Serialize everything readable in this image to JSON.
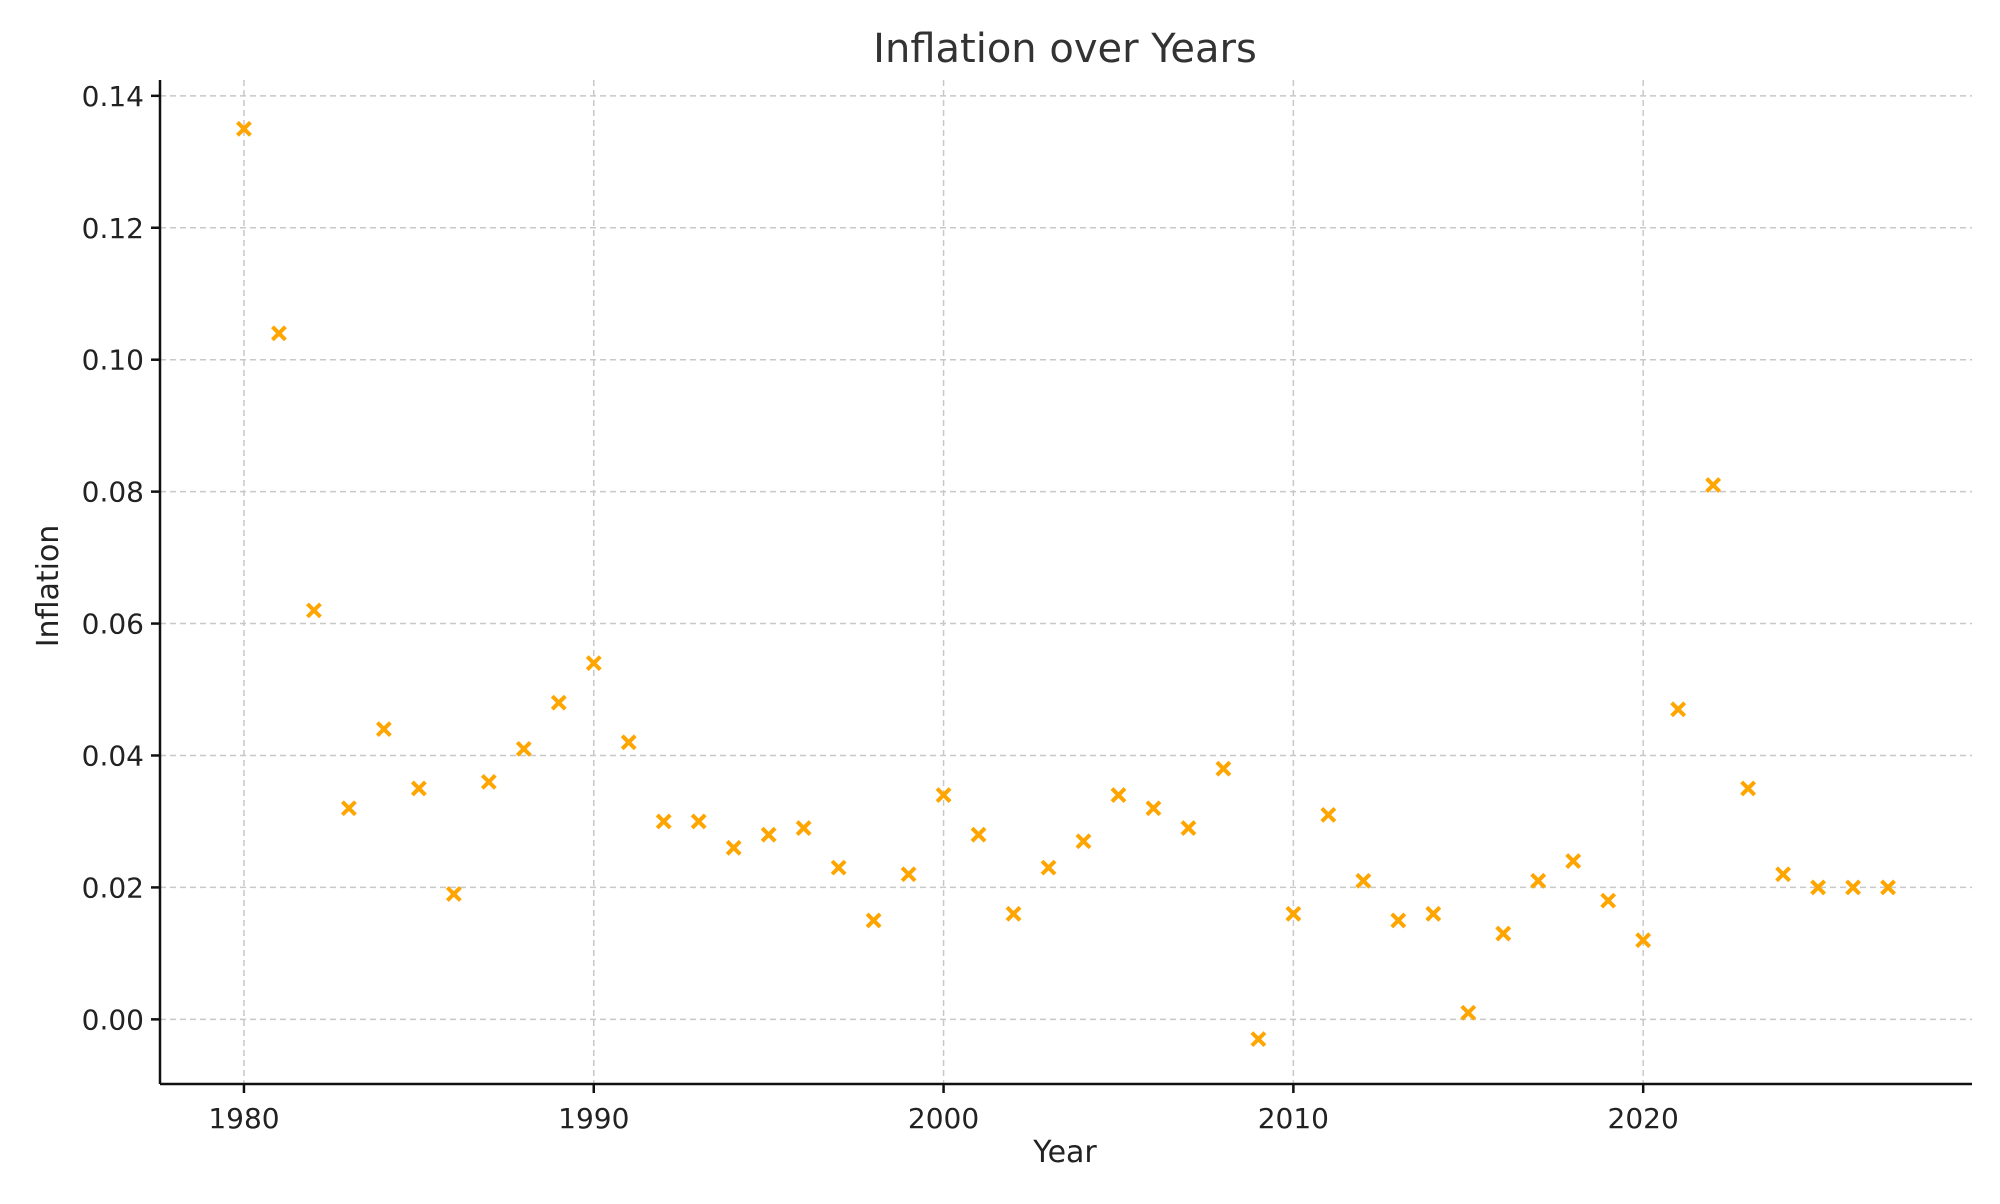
{
  "chart_data": {
    "type": "scatter",
    "title": "Inflation over Years",
    "xlabel": "Year",
    "ylabel": "Inflation",
    "xlim": [
      1977.6,
      2029.4
    ],
    "ylim": [
      -0.0098,
      0.1424
    ],
    "xticks": [
      1980,
      1990,
      2000,
      2010,
      2020
    ],
    "xtick_labels": [
      "1980",
      "1990",
      "2000",
      "2010",
      "2020"
    ],
    "yticks": [
      0.0,
      0.02,
      0.04,
      0.06,
      0.08,
      0.1,
      0.12,
      0.14
    ],
    "ytick_labels": [
      "0.00",
      "0.02",
      "0.04",
      "0.06",
      "0.08",
      "0.10",
      "0.12",
      "0.14"
    ],
    "grid": true,
    "marker": "x",
    "color": "#FFA500",
    "x": [
      1980,
      1981,
      1982,
      1983,
      1984,
      1985,
      1986,
      1987,
      1988,
      1989,
      1990,
      1991,
      1992,
      1993,
      1994,
      1995,
      1996,
      1997,
      1998,
      1999,
      2000,
      2001,
      2002,
      2003,
      2004,
      2005,
      2006,
      2007,
      2008,
      2009,
      2010,
      2011,
      2012,
      2013,
      2014,
      2015,
      2016,
      2017,
      2018,
      2019,
      2020,
      2021,
      2022,
      2023,
      2024,
      2025,
      2026,
      2027
    ],
    "y": [
      0.135,
      0.104,
      0.062,
      0.032,
      0.044,
      0.035,
      0.019,
      0.036,
      0.041,
      0.048,
      0.054,
      0.042,
      0.03,
      0.03,
      0.026,
      0.028,
      0.029,
      0.023,
      0.015,
      0.022,
      0.034,
      0.028,
      0.016,
      0.023,
      0.027,
      0.034,
      0.032,
      0.029,
      0.038,
      -0.003,
      0.016,
      0.031,
      0.021,
      0.015,
      0.016,
      0.001,
      0.013,
      0.021,
      0.024,
      0.018,
      0.012,
      0.047,
      0.081,
      0.035,
      0.022,
      0.02,
      0.02,
      0.02
    ]
  }
}
